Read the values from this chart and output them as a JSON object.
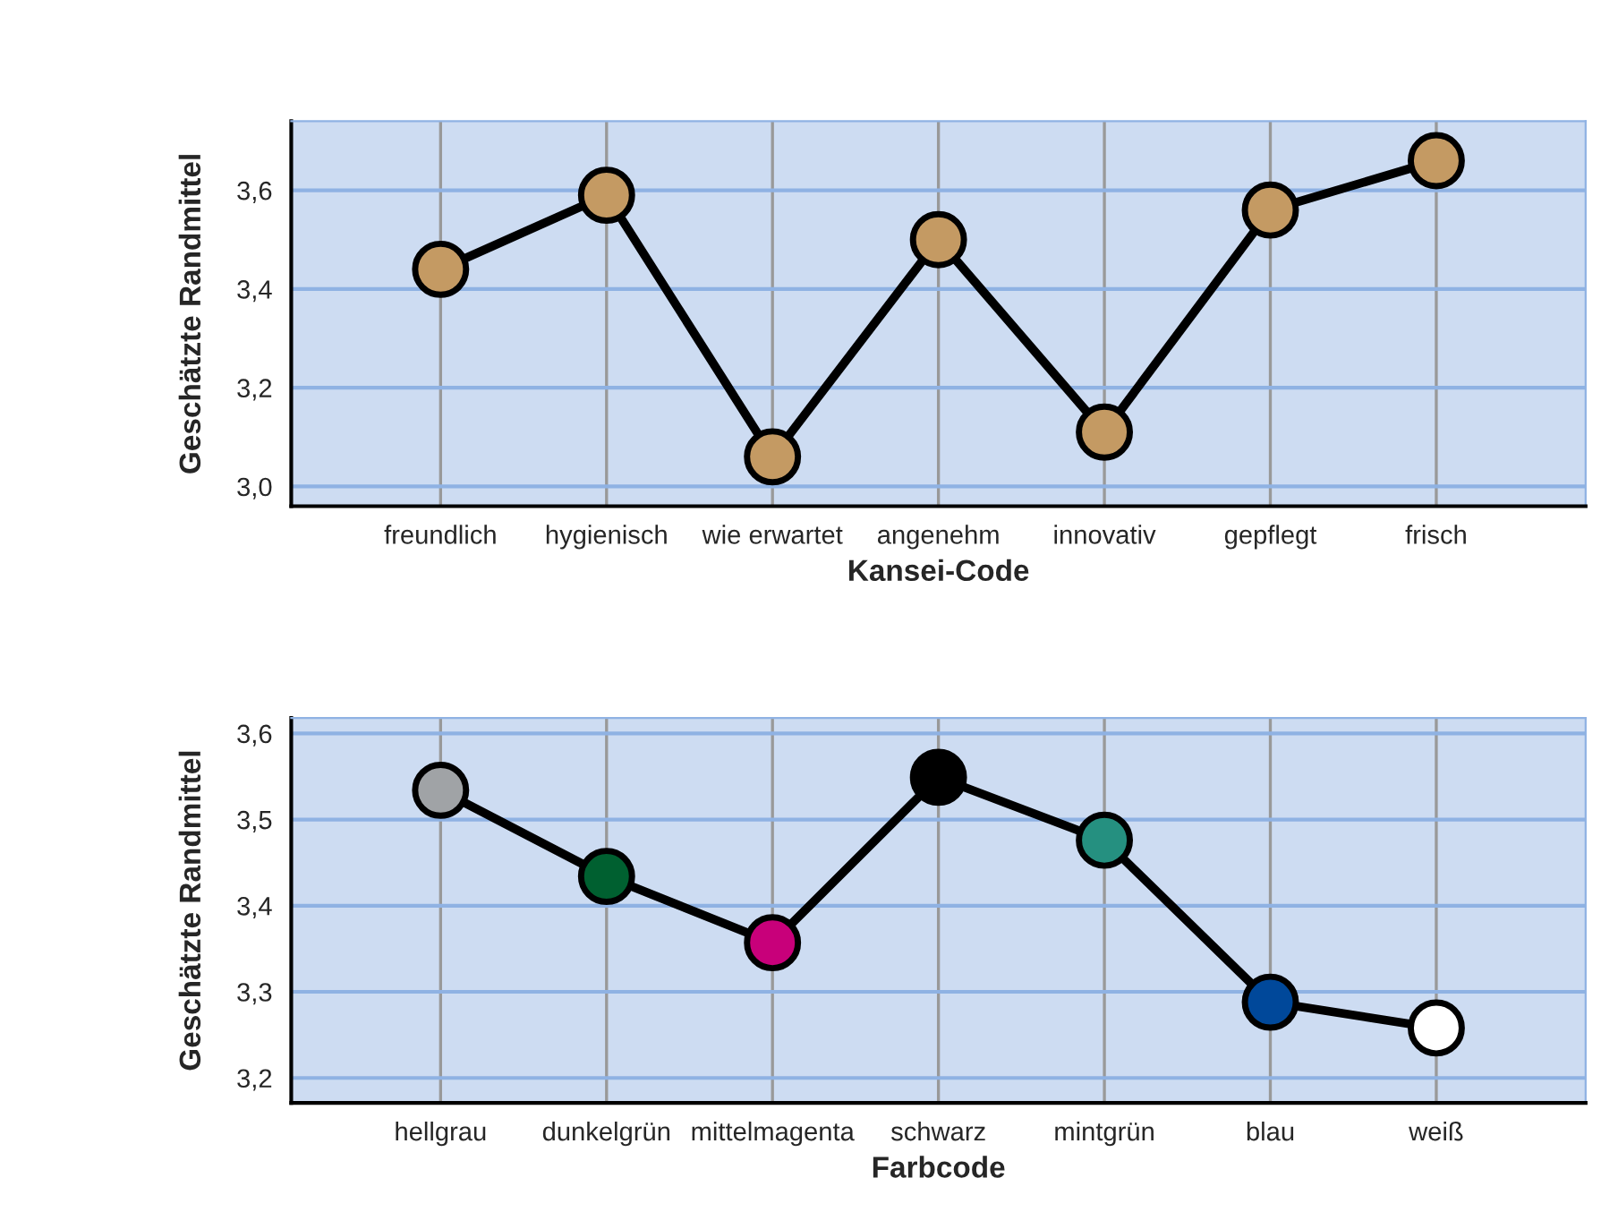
{
  "chart_data": [
    {
      "type": "line",
      "xlabel": "Kansei-Code",
      "ylabel": "Geschätzte Randmittel",
      "categories": [
        "freundlich",
        "hygienisch",
        "wie erwartet",
        "angenehm",
        "innovativ",
        "gepflegt",
        "frisch"
      ],
      "series": [
        {
          "color": "#000000",
          "values": [
            3.44,
            3.59,
            3.06,
            3.5,
            3.11,
            3.56,
            3.66
          ],
          "colors": [
            "#c49a63",
            "#c49a63",
            "#c49a63",
            "#c49a63",
            "#c49a63",
            "#c49a63",
            "#c49a63"
          ]
        }
      ],
      "ylim": [
        2.96,
        3.74
      ],
      "yticks": [
        {
          "value": 3.0,
          "label": "3,0"
        },
        {
          "value": 3.2,
          "label": "3,2"
        },
        {
          "value": 3.4,
          "label": "3,4"
        },
        {
          "value": 3.6,
          "label": "3,6"
        }
      ],
      "grid": true,
      "marker": "circle",
      "line_style": "solid"
    },
    {
      "type": "line",
      "xlabel": "Farbcode",
      "ylabel": "Geschätzte Randmittel",
      "categories": [
        "hellgrau",
        "dunkelgrün",
        "mittelmagenta",
        "schwarz",
        "mintgrün",
        "blau",
        "weiß"
      ],
      "series": [
        {
          "color": "#000000",
          "values": [
            3.534,
            3.434,
            3.357,
            3.549,
            3.476,
            3.288,
            3.258
          ],
          "colors": [
            "#a0a3a6",
            "#006030",
            "#c8007a",
            "#000000",
            "#259080",
            "#00489a",
            "#ffffff"
          ]
        }
      ],
      "ylim": [
        3.171,
        3.618
      ],
      "yticks": [
        {
          "value": 3.2,
          "label": "3,2"
        },
        {
          "value": 3.3,
          "label": "3,3"
        },
        {
          "value": 3.4,
          "label": "3,4"
        },
        {
          "value": 3.5,
          "label": "3,5"
        },
        {
          "value": 3.6,
          "label": "3,6"
        }
      ],
      "grid": true,
      "marker": "circle",
      "line_style": "solid"
    }
  ]
}
